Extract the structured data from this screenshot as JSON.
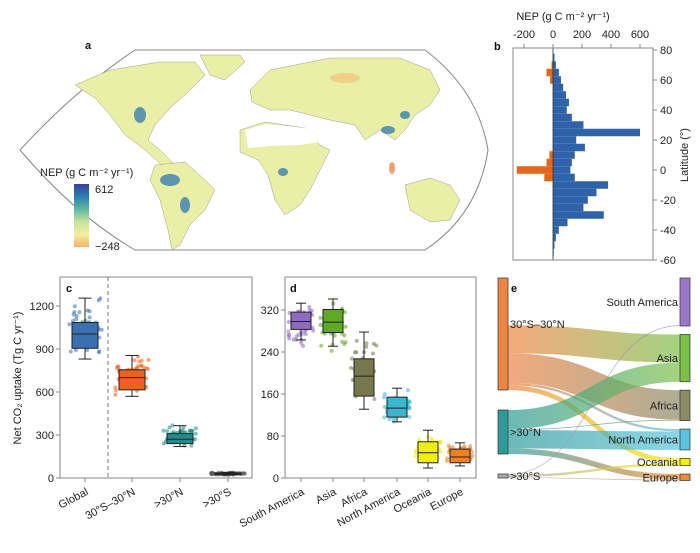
{
  "panels": {
    "a": "a",
    "b": "b",
    "c": "c",
    "d": "d",
    "e": "e"
  },
  "chart_data": [
    {
      "panel": "a",
      "type": "heatmap",
      "kind": "world map",
      "colorbar": {
        "title": "NEP (g C m⁻² yr⁻¹)",
        "max_label": "612",
        "min_label": "−248",
        "max": 612,
        "min": -248,
        "colors": [
          "#f6b26b",
          "#f3efa0",
          "#c7e39a",
          "#5fb8a0",
          "#2a7fb0",
          "#3b3f9a"
        ]
      }
    },
    {
      "panel": "b",
      "type": "bar",
      "orientation": "horizontal",
      "xlabel": "NEP (g C m⁻² yr⁻¹)",
      "ylabel": "Latitude (°)",
      "xticks": [
        "-200",
        "0",
        "200",
        "400",
        "600"
      ],
      "xlim": [
        -250,
        650
      ],
      "yticks": [
        "80",
        "60",
        "40",
        "20",
        "0",
        "-20",
        "-40",
        "-60"
      ],
      "ylim": [
        -60,
        80
      ],
      "latitudes": [
        75,
        70,
        65,
        60,
        55,
        50,
        45,
        40,
        35,
        30,
        25,
        20,
        15,
        10,
        5,
        0,
        -5,
        -10,
        -15,
        -20,
        -25,
        -30,
        -35,
        -40,
        -45,
        -50,
        -55
      ],
      "positive": [
        10,
        20,
        40,
        55,
        70,
        90,
        110,
        95,
        130,
        210,
        600,
        160,
        220,
        150,
        130,
        120,
        150,
        380,
        300,
        240,
        210,
        350,
        100,
        40,
        20,
        10,
        5
      ],
      "negative": [
        0,
        -10,
        -45,
        -20,
        0,
        0,
        0,
        0,
        0,
        0,
        0,
        0,
        0,
        -25,
        -45,
        -250,
        -60,
        0,
        0,
        0,
        0,
        0,
        0,
        0,
        0,
        0,
        0
      ],
      "colors": {
        "positive": "#2f62a8",
        "negative": "#e0671c"
      }
    },
    {
      "panel": "c",
      "type": "box",
      "ylabel": "Net CO₂ uptake (Tg C yr⁻¹)",
      "ylim": [
        0,
        1350
      ],
      "yticks": [
        "0",
        "300",
        "600",
        "900",
        "1200"
      ],
      "categories": [
        "Global",
        "30°S–30°N",
        ">30°N",
        ">30°S"
      ],
      "boxes": [
        {
          "min": 830,
          "q1": 905,
          "median": 1005,
          "q3": 1085,
          "max": 1255,
          "spread": [
            770,
            1300
          ],
          "color": "#3a6fb0"
        },
        {
          "min": 570,
          "q1": 615,
          "median": 700,
          "q3": 755,
          "max": 855,
          "spread": [
            550,
            885
          ],
          "color": "#e8641e"
        },
        {
          "min": 220,
          "q1": 240,
          "median": 270,
          "q3": 310,
          "max": 365,
          "spread": [
            215,
            380
          ],
          "color": "#1c8c8c"
        },
        {
          "min": 20,
          "q1": 25,
          "median": 30,
          "q3": 35,
          "max": 40,
          "spread": [
            18,
            42
          ],
          "color": "#555555"
        }
      ]
    },
    {
      "panel": "d",
      "type": "box",
      "ylim": [
        0,
        365
      ],
      "yticks": [
        "0",
        "80",
        "160",
        "240",
        "320"
      ],
      "categories": [
        "South America",
        "Asia",
        "Africa",
        "North America",
        "Oceania",
        "Europe"
      ],
      "boxes": [
        {
          "min": 263,
          "q1": 283,
          "median": 298,
          "q3": 316,
          "max": 333,
          "spread": [
            245,
            340
          ],
          "color": "#8e6bbf"
        },
        {
          "min": 251,
          "q1": 277,
          "median": 297,
          "q3": 321,
          "max": 341,
          "spread": [
            232,
            346
          ],
          "color": "#5fa828"
        },
        {
          "min": 131,
          "q1": 156,
          "median": 194,
          "q3": 227,
          "max": 278,
          "spread": [
            122,
            290
          ],
          "color": "#77774e"
        },
        {
          "min": 107,
          "q1": 116,
          "median": 133,
          "q3": 154,
          "max": 171,
          "spread": [
            100,
            175
          ],
          "color": "#3bb6d0"
        },
        {
          "min": 19,
          "q1": 29,
          "median": 48,
          "q3": 69,
          "max": 91,
          "spread": [
            16,
            96
          ],
          "color": "#eeee10"
        },
        {
          "min": 23,
          "q1": 29,
          "median": 40,
          "q3": 55,
          "max": 67,
          "spread": [
            20,
            72
          ],
          "color": "#f28020"
        }
      ]
    },
    {
      "panel": "e",
      "type": "sankey",
      "sources": [
        {
          "name": "30°S–30°N",
          "color": "#ee8444"
        },
        {
          "name": ">30°N",
          "color": "#2e9a9a"
        },
        {
          "name": ">30°S",
          "color": "#aaaaaa"
        }
      ],
      "targets": [
        {
          "name": "South America",
          "color": "#9a78c8"
        },
        {
          "name": "Asia",
          "color": "#7cc04a"
        },
        {
          "name": "Africa",
          "color": "#8a8a66"
        },
        {
          "name": "North America",
          "color": "#5cc4dc"
        },
        {
          "name": "Oceania",
          "color": "#f4f000"
        },
        {
          "name": "Europe",
          "color": "#f28a30"
        }
      ],
      "flows": [
        [
          0,
          0,
          295
        ],
        [
          0,
          1,
          175
        ],
        [
          0,
          2,
          185
        ],
        [
          0,
          3,
          15
        ],
        [
          0,
          4,
          30
        ],
        [
          1,
          1,
          120
        ],
        [
          1,
          2,
          5
        ],
        [
          1,
          3,
          115
        ],
        [
          1,
          5,
          35
        ],
        [
          2,
          0,
          5
        ],
        [
          2,
          4,
          15
        ],
        [
          2,
          5,
          5
        ]
      ]
    }
  ]
}
